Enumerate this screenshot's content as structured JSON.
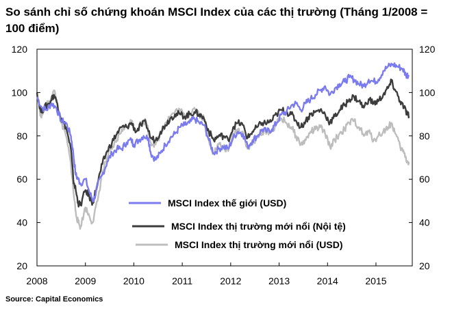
{
  "chart_data": {
    "type": "line",
    "title": "So sánh chỉ số chứng khoán MSCI Index của các thị trường (Tháng 1/2008 = 100 điểm)",
    "source": "Source: Capital Economics",
    "x_ticks": [
      "2008",
      "2009",
      "2010",
      "2011",
      "2012",
      "2013",
      "2014",
      "2015"
    ],
    "y_ticks": [
      "20",
      "40",
      "60",
      "80",
      "100",
      "120"
    ],
    "xlim": [
      2008.0,
      2015.75
    ],
    "ylim": [
      20,
      120
    ],
    "grid": false,
    "legend_position": "center",
    "series": [
      {
        "name": "MSCI Index thế giới (USD)",
        "color": "#7b7bf0",
        "points": [
          [
            2008.0,
            98
          ],
          [
            2008.1,
            93
          ],
          [
            2008.2,
            92
          ],
          [
            2008.3,
            95
          ],
          [
            2008.4,
            93
          ],
          [
            2008.5,
            87
          ],
          [
            2008.6,
            86
          ],
          [
            2008.7,
            80
          ],
          [
            2008.75,
            72
          ],
          [
            2008.8,
            62
          ],
          [
            2008.85,
            60
          ],
          [
            2008.9,
            58
          ],
          [
            2009.0,
            60
          ],
          [
            2009.1,
            53
          ],
          [
            2009.17,
            50
          ],
          [
            2009.25,
            57
          ],
          [
            2009.35,
            62
          ],
          [
            2009.45,
            68
          ],
          [
            2009.55,
            72
          ],
          [
            2009.65,
            74
          ],
          [
            2009.75,
            74
          ],
          [
            2009.85,
            77
          ],
          [
            2009.95,
            78
          ],
          [
            2010.0,
            76
          ],
          [
            2010.1,
            78
          ],
          [
            2010.2,
            80
          ],
          [
            2010.3,
            79
          ],
          [
            2010.35,
            72
          ],
          [
            2010.45,
            69
          ],
          [
            2010.55,
            72
          ],
          [
            2010.65,
            76
          ],
          [
            2010.75,
            79
          ],
          [
            2010.85,
            81
          ],
          [
            2010.95,
            84
          ],
          [
            2011.05,
            85
          ],
          [
            2011.15,
            86
          ],
          [
            2011.25,
            88
          ],
          [
            2011.35,
            86
          ],
          [
            2011.45,
            85
          ],
          [
            2011.55,
            78
          ],
          [
            2011.65,
            72
          ],
          [
            2011.75,
            74
          ],
          [
            2011.85,
            75
          ],
          [
            2011.95,
            74
          ],
          [
            2012.05,
            79
          ],
          [
            2012.15,
            82
          ],
          [
            2012.25,
            81
          ],
          [
            2012.35,
            75
          ],
          [
            2012.45,
            78
          ],
          [
            2012.55,
            80
          ],
          [
            2012.65,
            83
          ],
          [
            2012.75,
            82
          ],
          [
            2012.85,
            83
          ],
          [
            2012.95,
            86
          ],
          [
            2013.05,
            90
          ],
          [
            2013.15,
            91
          ],
          [
            2013.25,
            94
          ],
          [
            2013.35,
            95
          ],
          [
            2013.45,
            92
          ],
          [
            2013.55,
            95
          ],
          [
            2013.65,
            97
          ],
          [
            2013.75,
            99
          ],
          [
            2013.85,
            101
          ],
          [
            2013.95,
            103
          ],
          [
            2014.05,
            99
          ],
          [
            2014.15,
            102
          ],
          [
            2014.25,
            104
          ],
          [
            2014.35,
            105
          ],
          [
            2014.45,
            107
          ],
          [
            2014.55,
            106
          ],
          [
            2014.65,
            104
          ],
          [
            2014.75,
            103
          ],
          [
            2014.85,
            106
          ],
          [
            2014.95,
            105
          ],
          [
            2015.05,
            106
          ],
          [
            2015.15,
            110
          ],
          [
            2015.25,
            112
          ],
          [
            2015.35,
            113
          ],
          [
            2015.45,
            112
          ],
          [
            2015.55,
            111
          ],
          [
            2015.62,
            108
          ],
          [
            2015.68,
            108
          ]
        ]
      },
      {
        "name": "MSCI Index thị trường mới nổi (Nội tệ)",
        "color": "#3c3c3c",
        "points": [
          [
            2008.0,
            100
          ],
          [
            2008.08,
            91
          ],
          [
            2008.15,
            93
          ],
          [
            2008.25,
            95
          ],
          [
            2008.35,
            99
          ],
          [
            2008.42,
            95
          ],
          [
            2008.5,
            88
          ],
          [
            2008.6,
            84
          ],
          [
            2008.7,
            74
          ],
          [
            2008.75,
            60
          ],
          [
            2008.8,
            55
          ],
          [
            2008.85,
            49
          ],
          [
            2008.9,
            48
          ],
          [
            2009.0,
            55
          ],
          [
            2009.08,
            52
          ],
          [
            2009.15,
            49
          ],
          [
            2009.25,
            58
          ],
          [
            2009.35,
            67
          ],
          [
            2009.45,
            73
          ],
          [
            2009.55,
            77
          ],
          [
            2009.65,
            81
          ],
          [
            2009.75,
            84
          ],
          [
            2009.85,
            84
          ],
          [
            2009.95,
            86
          ],
          [
            2010.05,
            82
          ],
          [
            2010.15,
            85
          ],
          [
            2010.25,
            86
          ],
          [
            2010.35,
            79
          ],
          [
            2010.45,
            78
          ],
          [
            2010.55,
            82
          ],
          [
            2010.65,
            85
          ],
          [
            2010.75,
            88
          ],
          [
            2010.85,
            90
          ],
          [
            2010.95,
            90
          ],
          [
            2011.05,
            89
          ],
          [
            2011.15,
            90
          ],
          [
            2011.25,
            91
          ],
          [
            2011.35,
            90
          ],
          [
            2011.45,
            88
          ],
          [
            2011.55,
            82
          ],
          [
            2011.65,
            78
          ],
          [
            2011.75,
            80
          ],
          [
            2011.85,
            80
          ],
          [
            2011.95,
            78
          ],
          [
            2012.05,
            84
          ],
          [
            2012.15,
            86
          ],
          [
            2012.25,
            85
          ],
          [
            2012.35,
            79
          ],
          [
            2012.45,
            82
          ],
          [
            2012.55,
            84
          ],
          [
            2012.65,
            86
          ],
          [
            2012.75,
            86
          ],
          [
            2012.85,
            87
          ],
          [
            2012.95,
            90
          ],
          [
            2013.05,
            92
          ],
          [
            2013.15,
            91
          ],
          [
            2013.25,
            90
          ],
          [
            2013.35,
            87
          ],
          [
            2013.45,
            84
          ],
          [
            2013.55,
            87
          ],
          [
            2013.65,
            90
          ],
          [
            2013.75,
            91
          ],
          [
            2013.85,
            92
          ],
          [
            2013.95,
            90
          ],
          [
            2014.05,
            86
          ],
          [
            2014.15,
            89
          ],
          [
            2014.25,
            92
          ],
          [
            2014.35,
            94
          ],
          [
            2014.45,
            97
          ],
          [
            2014.55,
            98
          ],
          [
            2014.65,
            96
          ],
          [
            2014.75,
            93
          ],
          [
            2014.85,
            97
          ],
          [
            2014.95,
            95
          ],
          [
            2015.05,
            96
          ],
          [
            2015.15,
            99
          ],
          [
            2015.25,
            102
          ],
          [
            2015.32,
            105
          ],
          [
            2015.4,
            101
          ],
          [
            2015.5,
            96
          ],
          [
            2015.58,
            93
          ],
          [
            2015.65,
            90
          ],
          [
            2015.68,
            89
          ]
        ]
      },
      {
        "name": "MSCI Index thị trường mới nổi (USD)",
        "color": "#bdbdbd",
        "points": [
          [
            2008.0,
            100
          ],
          [
            2008.08,
            89
          ],
          [
            2008.15,
            92
          ],
          [
            2008.25,
            96
          ],
          [
            2008.35,
            101
          ],
          [
            2008.42,
            95
          ],
          [
            2008.5,
            86
          ],
          [
            2008.6,
            80
          ],
          [
            2008.7,
            67
          ],
          [
            2008.75,
            55
          ],
          [
            2008.8,
            45
          ],
          [
            2008.85,
            40
          ],
          [
            2008.9,
            38
          ],
          [
            2009.0,
            47
          ],
          [
            2009.08,
            43
          ],
          [
            2009.15,
            40
          ],
          [
            2009.25,
            50
          ],
          [
            2009.35,
            63
          ],
          [
            2009.45,
            70
          ],
          [
            2009.55,
            74
          ],
          [
            2009.65,
            78
          ],
          [
            2009.75,
            83
          ],
          [
            2009.85,
            84
          ],
          [
            2009.95,
            87
          ],
          [
            2010.05,
            82
          ],
          [
            2010.15,
            86
          ],
          [
            2010.25,
            87
          ],
          [
            2010.35,
            77
          ],
          [
            2010.45,
            76
          ],
          [
            2010.55,
            81
          ],
          [
            2010.65,
            86
          ],
          [
            2010.75,
            89
          ],
          [
            2010.85,
            91
          ],
          [
            2010.95,
            92
          ],
          [
            2011.05,
            89
          ],
          [
            2011.15,
            90
          ],
          [
            2011.25,
            93
          ],
          [
            2011.35,
            90
          ],
          [
            2011.45,
            88
          ],
          [
            2011.55,
            78
          ],
          [
            2011.65,
            72
          ],
          [
            2011.75,
            76
          ],
          [
            2011.85,
            75
          ],
          [
            2011.95,
            73
          ],
          [
            2012.05,
            81
          ],
          [
            2012.15,
            83
          ],
          [
            2012.25,
            82
          ],
          [
            2012.35,
            74
          ],
          [
            2012.45,
            76
          ],
          [
            2012.55,
            79
          ],
          [
            2012.65,
            82
          ],
          [
            2012.75,
            82
          ],
          [
            2012.85,
            82
          ],
          [
            2012.95,
            86
          ],
          [
            2013.05,
            88
          ],
          [
            2013.15,
            86
          ],
          [
            2013.25,
            84
          ],
          [
            2013.35,
            80
          ],
          [
            2013.45,
            76
          ],
          [
            2013.55,
            78
          ],
          [
            2013.65,
            82
          ],
          [
            2013.75,
            83
          ],
          [
            2013.85,
            84
          ],
          [
            2013.95,
            81
          ],
          [
            2014.05,
            75
          ],
          [
            2014.15,
            78
          ],
          [
            2014.25,
            81
          ],
          [
            2014.35,
            83
          ],
          [
            2014.45,
            86
          ],
          [
            2014.55,
            87
          ],
          [
            2014.65,
            84
          ],
          [
            2014.75,
            80
          ],
          [
            2014.85,
            82
          ],
          [
            2014.95,
            78
          ],
          [
            2015.05,
            80
          ],
          [
            2015.15,
            82
          ],
          [
            2015.25,
            84
          ],
          [
            2015.32,
            86
          ],
          [
            2015.4,
            81
          ],
          [
            2015.5,
            75
          ],
          [
            2015.58,
            72
          ],
          [
            2015.65,
            68
          ],
          [
            2015.68,
            68
          ]
        ]
      }
    ]
  }
}
